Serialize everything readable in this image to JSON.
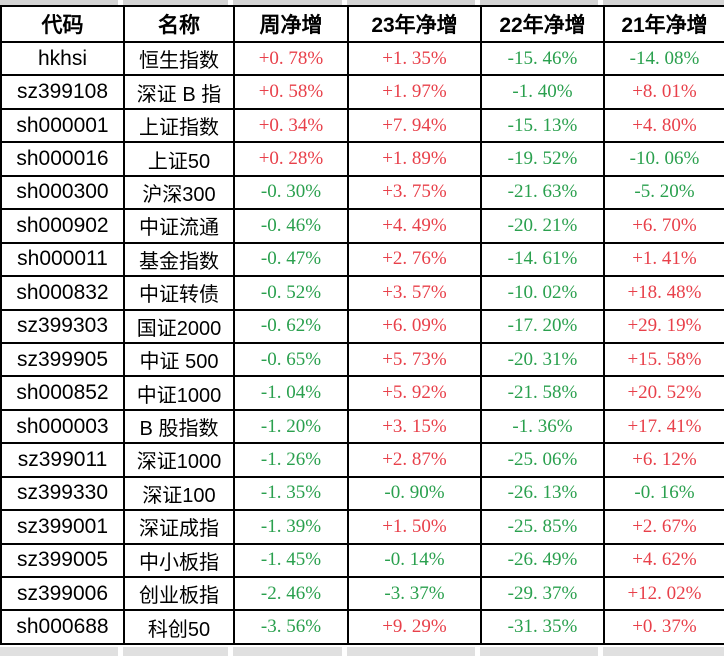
{
  "colors": {
    "positive_up": "#e8404a",
    "negative_down": "#2aa04e",
    "grid_border": "#000000",
    "header_text": "#000000",
    "cell_text": "#000000",
    "strip_top_gray": "#d4d4d4",
    "strip_bottom_gray": "#e0e0e0",
    "background": "#ffffff"
  },
  "table": {
    "columns": [
      {
        "key": "code",
        "label": "代码"
      },
      {
        "key": "name",
        "label": "名称"
      },
      {
        "key": "week",
        "label": "周净增"
      },
      {
        "key": "y23",
        "label": "23年净增"
      },
      {
        "key": "y22",
        "label": "22年净增"
      },
      {
        "key": "y21",
        "label": "21年净增"
      }
    ],
    "rows": [
      {
        "code": "hkhsi",
        "name": "恒生指数",
        "week": "+0. 78%",
        "y23": "+1. 35%",
        "y22": "-15. 46%",
        "y21": "-14. 08%"
      },
      {
        "code": "sz399108",
        "name": "深证 B 指",
        "week": "+0. 58%",
        "y23": "+1. 97%",
        "y22": "-1. 40%",
        "y21": "+8. 01%"
      },
      {
        "code": "sh000001",
        "name": "上证指数",
        "week": "+0. 34%",
        "y23": "+7. 94%",
        "y22": "-15. 13%",
        "y21": "+4. 80%"
      },
      {
        "code": "sh000016",
        "name": "上证50",
        "week": "+0. 28%",
        "y23": "+1. 89%",
        "y22": "-19. 52%",
        "y21": "-10. 06%"
      },
      {
        "code": "sh000300",
        "name": "沪深300",
        "week": "-0. 30%",
        "y23": "+3. 75%",
        "y22": "-21. 63%",
        "y21": "-5. 20%"
      },
      {
        "code": "sh000902",
        "name": "中证流通",
        "week": "-0. 46%",
        "y23": "+4. 49%",
        "y22": "-20. 21%",
        "y21": "+6. 70%"
      },
      {
        "code": "sh000011",
        "name": "基金指数",
        "week": "-0. 47%",
        "y23": "+2. 76%",
        "y22": "-14. 61%",
        "y21": "+1. 41%"
      },
      {
        "code": "sh000832",
        "name": "中证转债",
        "week": "-0. 52%",
        "y23": "+3. 57%",
        "y22": "-10. 02%",
        "y21": "+18. 48%"
      },
      {
        "code": "sz399303",
        "name": "国证2000",
        "week": "-0. 62%",
        "y23": "+6. 09%",
        "y22": "-17. 20%",
        "y21": "+29. 19%"
      },
      {
        "code": "sz399905",
        "name": "中证 500",
        "week": "-0. 65%",
        "y23": "+5. 73%",
        "y22": "-20. 31%",
        "y21": "+15. 58%"
      },
      {
        "code": "sh000852",
        "name": "中证1000",
        "week": "-1. 04%",
        "y23": "+5. 92%",
        "y22": "-21. 58%",
        "y21": "+20. 52%"
      },
      {
        "code": "sh000003",
        "name": "B 股指数",
        "week": "-1. 20%",
        "y23": "+3. 15%",
        "y22": "-1. 36%",
        "y21": "+17. 41%"
      },
      {
        "code": "sz399011",
        "name": "深证1000",
        "week": "-1. 26%",
        "y23": "+2. 87%",
        "y22": "-25. 06%",
        "y21": "+6. 12%"
      },
      {
        "code": "sz399330",
        "name": "深证100",
        "week": "-1. 35%",
        "y23": "-0. 90%",
        "y22": "-26. 13%",
        "y21": "-0. 16%"
      },
      {
        "code": "sz399001",
        "name": "深证成指",
        "week": "-1. 39%",
        "y23": "+1. 50%",
        "y22": "-25. 85%",
        "y21": "+2. 67%"
      },
      {
        "code": "sz399005",
        "name": "中小板指",
        "week": "-1. 45%",
        "y23": "-0. 14%",
        "y22": "-26. 49%",
        "y21": "+4. 62%"
      },
      {
        "code": "sz399006",
        "name": "创业板指",
        "week": "-2. 46%",
        "y23": "-3. 37%",
        "y22": "-29. 37%",
        "y21": "+12. 02%"
      },
      {
        "code": "sh000688",
        "name": "科创50",
        "week": "-3. 56%",
        "y23": "+9. 29%",
        "y22": "-31. 35%",
        "y21": "+0. 37%"
      }
    ]
  }
}
